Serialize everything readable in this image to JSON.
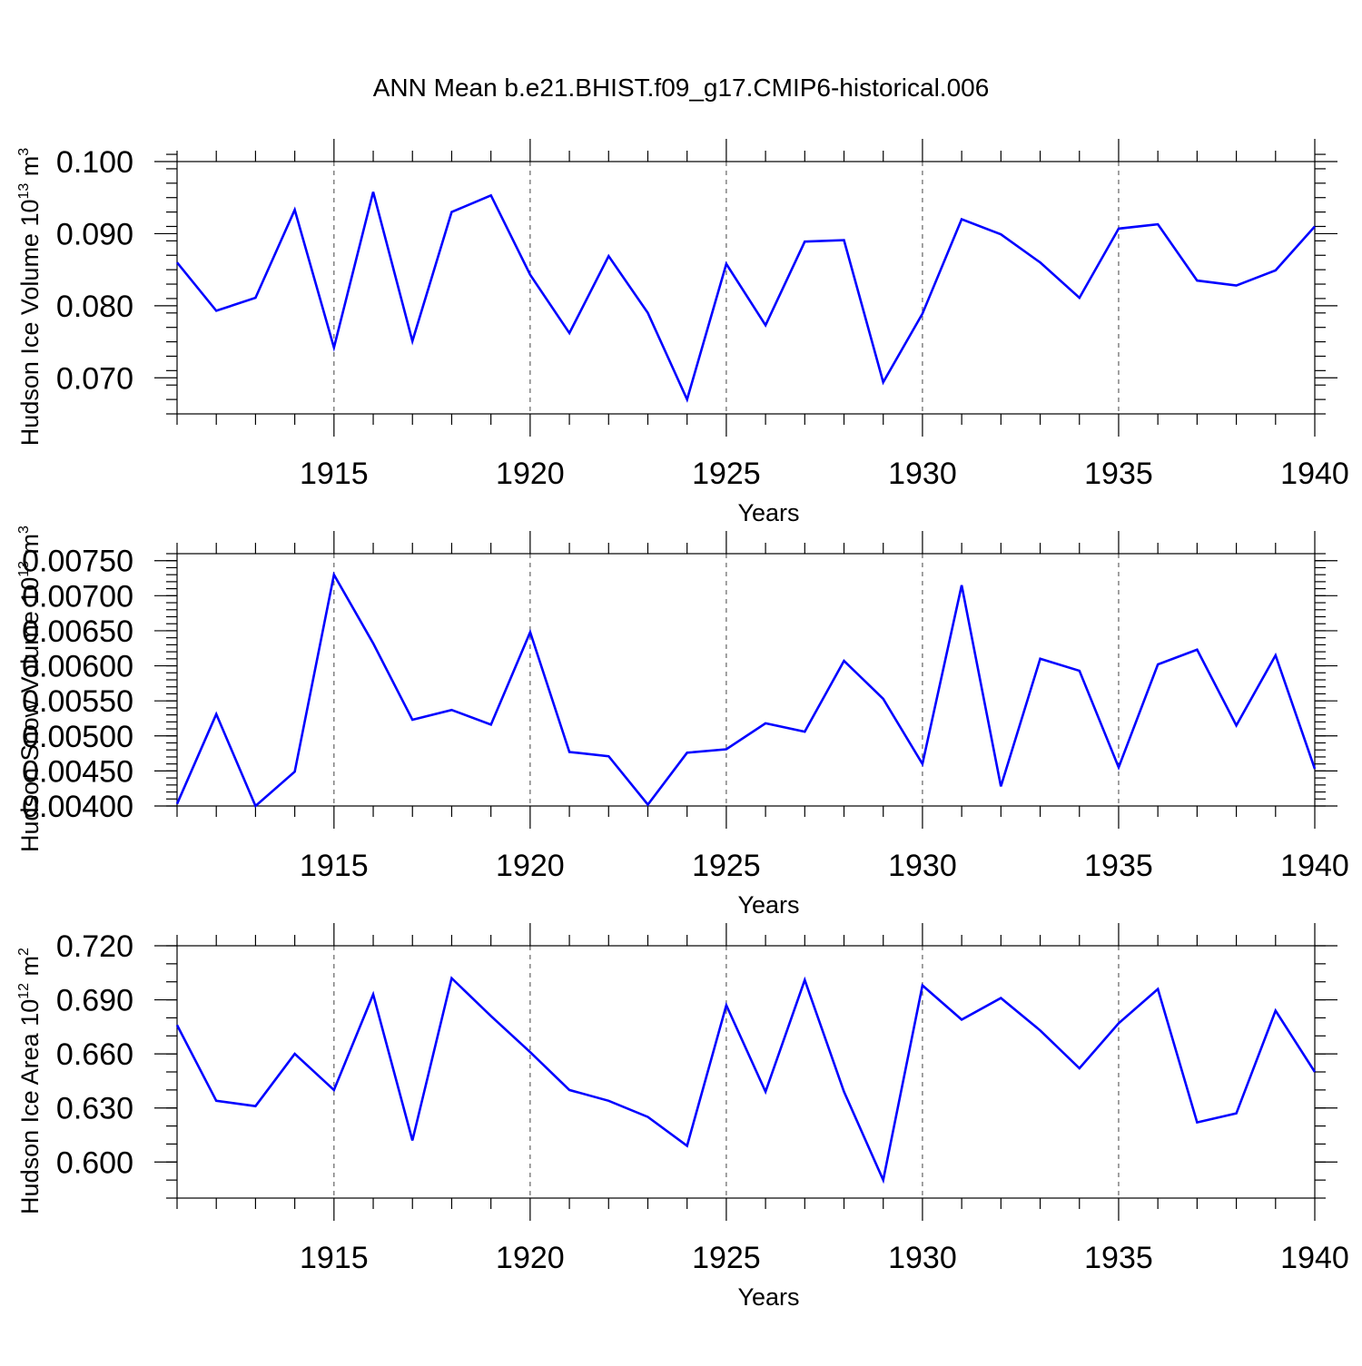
{
  "title": "ANN Mean b.e21.BHIST.f09_g17.CMIP6-historical.006",
  "colors": {
    "line": "#0000ff",
    "axis": "#000000",
    "grid": "#555555"
  },
  "chart_data": [
    {
      "type": "line",
      "ylabel": "Hudson Ice Volume 10",
      "ylabel_exp": "13",
      "ylabel_unit": " m",
      "ylabel_unit_exp": "3",
      "xlabel": "Years",
      "xlim": [
        1911,
        1940
      ],
      "ylim": [
        0.065,
        0.1
      ],
      "yticks": [
        0.07,
        0.08,
        0.09,
        0.1
      ],
      "ytick_labels": [
        "0.070",
        "0.080",
        "0.090",
        "0.100"
      ],
      "yminor_step": 0.002,
      "xticks": [
        1915,
        1920,
        1925,
        1930,
        1935,
        1940
      ],
      "xtick_labels": [
        "1915",
        "1920",
        "1925",
        "1930",
        "1935",
        "1940"
      ],
      "x": [
        1911,
        1912,
        1913,
        1914,
        1915,
        1916,
        1917,
        1918,
        1919,
        1920,
        1921,
        1922,
        1923,
        1924,
        1925,
        1926,
        1927,
        1928,
        1929,
        1930,
        1931,
        1932,
        1933,
        1934,
        1935,
        1936,
        1937,
        1938,
        1939,
        1940
      ],
      "series": [
        {
          "name": "Hudson Ice Volume",
          "values": [
            0.086,
            0.0793,
            0.0811,
            0.0933,
            0.0742,
            0.0958,
            0.0751,
            0.093,
            0.0953,
            0.0843,
            0.0762,
            0.0869,
            0.079,
            0.067,
            0.0858,
            0.0773,
            0.0889,
            0.0891,
            0.0694,
            0.0789,
            0.092,
            0.0899,
            0.086,
            0.0811,
            0.0907,
            0.0913,
            0.0835,
            0.0828,
            0.0849,
            0.091
          ]
        }
      ]
    },
    {
      "type": "line",
      "ylabel": "Hudson Snow Volume 10",
      "ylabel_exp": "13",
      "ylabel_unit": " m",
      "ylabel_unit_exp": "3",
      "xlabel": "Years",
      "xlim": [
        1911,
        1940
      ],
      "ylim": [
        0.004,
        0.0076
      ],
      "yticks": [
        0.004,
        0.0045,
        0.005,
        0.0055,
        0.006,
        0.0065,
        0.007,
        0.0075
      ],
      "ytick_labels": [
        "0.00400",
        "0.00450",
        "0.00500",
        "0.00550",
        "0.00600",
        "0.00650",
        "0.00700",
        "0.00750"
      ],
      "yminor_step": 0.0001,
      "xticks": [
        1915,
        1920,
        1925,
        1930,
        1935,
        1940
      ],
      "xtick_labels": [
        "1915",
        "1920",
        "1925",
        "1930",
        "1935",
        "1940"
      ],
      "x": [
        1911,
        1912,
        1913,
        1914,
        1915,
        1916,
        1917,
        1918,
        1919,
        1920,
        1921,
        1922,
        1923,
        1924,
        1925,
        1926,
        1927,
        1928,
        1929,
        1930,
        1931,
        1932,
        1933,
        1934,
        1935,
        1936,
        1937,
        1938,
        1939,
        1940
      ],
      "series": [
        {
          "name": "Hudson Snow Volume",
          "values": [
            0.00403,
            0.00531,
            0.004,
            0.00449,
            0.0073,
            0.00632,
            0.00523,
            0.00537,
            0.00516,
            0.00648,
            0.00477,
            0.00471,
            0.00402,
            0.00476,
            0.00481,
            0.00518,
            0.00506,
            0.00607,
            0.00553,
            0.0046,
            0.00715,
            0.00428,
            0.0061,
            0.00593,
            0.00455,
            0.00602,
            0.00623,
            0.00515,
            0.00615,
            0.00453
          ]
        }
      ]
    },
    {
      "type": "line",
      "ylabel": "Hudson Ice Area 10",
      "ylabel_exp": "12",
      "ylabel_unit": " m",
      "ylabel_unit_exp": "2",
      "xlabel": "Years",
      "xlim": [
        1911,
        1940
      ],
      "ylim": [
        0.58,
        0.72
      ],
      "yticks": [
        0.6,
        0.63,
        0.66,
        0.69,
        0.72
      ],
      "ytick_labels": [
        "0.600",
        "0.630",
        "0.660",
        "0.690",
        "0.720"
      ],
      "yminor_step": 0.01,
      "xticks": [
        1915,
        1920,
        1925,
        1930,
        1935,
        1940
      ],
      "xtick_labels": [
        "1915",
        "1920",
        "1925",
        "1930",
        "1935",
        "1940"
      ],
      "x": [
        1911,
        1912,
        1913,
        1914,
        1915,
        1916,
        1917,
        1918,
        1919,
        1920,
        1921,
        1922,
        1923,
        1924,
        1925,
        1926,
        1927,
        1928,
        1929,
        1930,
        1931,
        1932,
        1933,
        1934,
        1935,
        1936,
        1937,
        1938,
        1939,
        1940
      ],
      "series": [
        {
          "name": "Hudson Ice Area",
          "values": [
            0.676,
            0.634,
            0.631,
            0.66,
            0.64,
            0.693,
            0.612,
            0.702,
            0.681,
            0.661,
            0.64,
            0.634,
            0.625,
            0.609,
            0.687,
            0.639,
            0.701,
            0.639,
            0.59,
            0.698,
            0.679,
            0.691,
            0.673,
            0.652,
            0.677,
            0.696,
            0.622,
            0.627,
            0.684,
            0.65
          ]
        }
      ]
    }
  ]
}
